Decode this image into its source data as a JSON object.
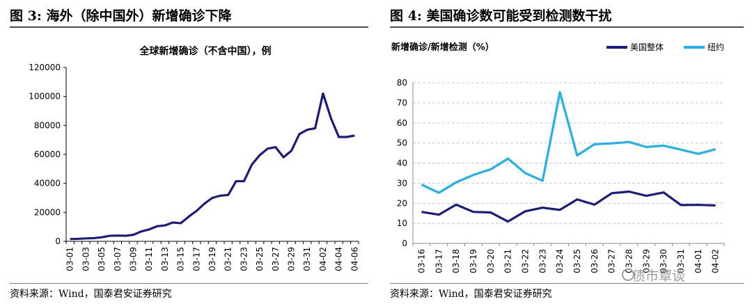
{
  "left_figure": {
    "title": "图 3:  海外（除中国外）新增确诊下降",
    "source": "资料来源：Wind，国泰君安证券研究"
  },
  "right_figure": {
    "title": "图 4:  美国确诊数可能受到检测数干扰",
    "source": "资料来源：Wind，国泰君安证券研究"
  },
  "watermark": "债市覃谈",
  "colors": {
    "dark_navy": "#1a1a80",
    "light_blue": "#1fb0ee",
    "grid": "#c8c8c8"
  },
  "chart_data": [
    {
      "type": "line",
      "title": "全球新增确诊（不含中国），例",
      "ylim": [
        0,
        120000
      ],
      "yticks": [
        0,
        20000,
        40000,
        60000,
        80000,
        100000,
        120000
      ],
      "x": [
        "03-01",
        "03-02",
        "03-03",
        "03-04",
        "03-05",
        "03-06",
        "03-07",
        "03-08",
        "03-09",
        "03-10",
        "03-11",
        "03-12",
        "03-13",
        "03-14",
        "03-15",
        "03-16",
        "03-17",
        "03-18",
        "03-19",
        "03-20",
        "03-21",
        "03-22",
        "03-23",
        "03-24",
        "03-25",
        "03-26",
        "03-27",
        "03-28",
        "03-29",
        "03-30",
        "03-31",
        "04-01",
        "04-02",
        "04-03",
        "04-04",
        "04-05",
        "04-06"
      ],
      "xtick_labels": [
        "03-01",
        "03-03",
        "03-05",
        "03-07",
        "03-09",
        "03-11",
        "03-13",
        "03-15",
        "03-17",
        "03-19",
        "03-21",
        "03-23",
        "03-25",
        "03-27",
        "03-29",
        "03-31",
        "04-02",
        "04-04",
        "04-06"
      ],
      "series": [
        {
          "values": [
            1600,
            1700,
            2000,
            2200,
            2800,
            3800,
            4000,
            3800,
            4500,
            6800,
            8200,
            10400,
            11000,
            13000,
            12500,
            17000,
            21000,
            26000,
            30000,
            31500,
            32000,
            41500,
            41500,
            53000,
            59500,
            64000,
            65000,
            58000,
            62500,
            74000,
            77000,
            78000,
            102000,
            85000,
            72000,
            72000,
            73000
          ]
        }
      ]
    },
    {
      "type": "line",
      "title": "",
      "ylabel": "新增确诊/新增检测（%）",
      "ylim": [
        0,
        80
      ],
      "yticks": [
        0,
        10,
        20,
        30,
        40,
        50,
        60,
        70,
        80
      ],
      "grid": true,
      "legend": "top-right",
      "x": [
        "03-16",
        "03-17",
        "03-18",
        "03-19",
        "03-20",
        "03-21",
        "03-22",
        "03-23",
        "03-24",
        "03-25",
        "03-26",
        "03-27",
        "03-28",
        "03-29",
        "03-30",
        "03-31",
        "04-01",
        "04-02"
      ],
      "series": [
        {
          "name": "美国整体",
          "color": "#1a1a80",
          "values": [
            15.7,
            14.3,
            19.3,
            15.7,
            15.4,
            10.9,
            16.0,
            17.8,
            16.7,
            21.9,
            19.3,
            25.0,
            25.8,
            23.7,
            25.4,
            19.1,
            19.2,
            18.9
          ]
        },
        {
          "name": "纽约",
          "color": "#1fb0ee",
          "values": [
            29.3,
            25.2,
            30.4,
            34.1,
            36.9,
            42.2,
            35.0,
            31.2,
            75.3,
            43.8,
            49.4,
            49.8,
            50.5,
            48.0,
            48.7,
            46.7,
            44.6,
            46.9
          ]
        }
      ]
    }
  ]
}
